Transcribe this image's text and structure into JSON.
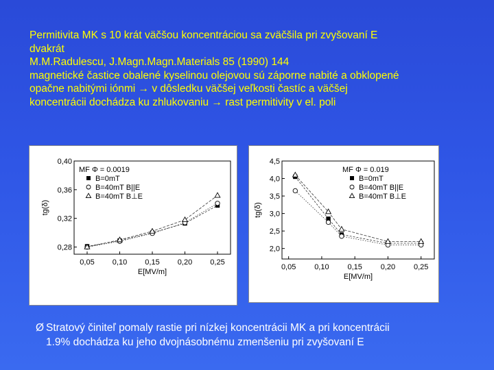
{
  "header": {
    "lines": [
      "Permitivita MK s 10 krát väčšou koncentráciou sa zväčšila pri zvyšovaní E",
      "dvakrát",
      "M.M.Radulescu, J.Magn.Magn.Materials 85 (1990) 144",
      "magnetické častice obalené kyselinou olejovou sú záporne nabité a obklopené",
      "opačne nabitými iónmi → v dôsledku väčšej veľkosti častíc a väčšej",
      "koncentrácii dochádza ku zhlukovaniu → rast permitivity v el. poli"
    ]
  },
  "footer": {
    "bullet": "Ø",
    "text_line1": "Stratový činiteľ pomaly rastie pri nízkej koncentrácii MK a pri koncentrácii",
    "text_line2": "1.9% dochádza ku jeho dvojnásobnému zmenšeniu pri zvyšovaní E"
  },
  "chart_data": [
    {
      "type": "line",
      "ylabel": "tg(δ)",
      "xlabel": "E[MV/m]",
      "xlim": [
        0.03,
        0.27
      ],
      "ylim": [
        0.27,
        0.4
      ],
      "x_ticks": [
        "0,05",
        "0,10",
        "0,15",
        "0,20",
        "0,25"
      ],
      "y_ticks": [
        "0,28",
        "0,32",
        "0,36",
        "0,40"
      ],
      "x_tick_values": [
        0.05,
        0.1,
        0.15,
        0.2,
        0.25
      ],
      "y_tick_values": [
        0.28,
        0.32,
        0.36,
        0.4
      ],
      "legend_position": "top-left",
      "legend_title": "MF Φ = 0.0019",
      "series": [
        {
          "name": "B=0mT",
          "marker": "square-filled",
          "x": [
            0.05,
            0.1,
            0.15,
            0.2,
            0.25
          ],
          "y": [
            0.281,
            0.289,
            0.3,
            0.313,
            0.338
          ]
        },
        {
          "name": "B=40mT B||E",
          "marker": "circle-open",
          "x": [
            0.05,
            0.1,
            0.15,
            0.2,
            0.25
          ],
          "y": [
            0.28,
            0.288,
            0.299,
            0.314,
            0.341
          ]
        },
        {
          "name": "B=40mT B⊥E",
          "marker": "triangle-open",
          "x": [
            0.05,
            0.1,
            0.15,
            0.2,
            0.25
          ],
          "y": [
            0.28,
            0.29,
            0.302,
            0.318,
            0.352
          ]
        }
      ]
    },
    {
      "type": "line",
      "ylabel": "tg(δ)",
      "xlabel": "E[MV/m]",
      "xlim": [
        0.04,
        0.27
      ],
      "ylim": [
        1.7,
        4.5
      ],
      "x_ticks": [
        "0,05",
        "0,10",
        "0,15",
        "0,20",
        "0,25"
      ],
      "y_ticks": [
        "2,0",
        "2,5",
        "3,0",
        "3,5",
        "4,0",
        "4,5"
      ],
      "x_tick_values": [
        0.05,
        0.1,
        0.15,
        0.2,
        0.25
      ],
      "y_tick_values": [
        2.0,
        2.5,
        3.0,
        3.5,
        4.0,
        4.5
      ],
      "legend_position": "top-right",
      "legend_title": "MF Φ = 0.019",
      "series": [
        {
          "name": "B=0mT",
          "marker": "square-filled",
          "x": [
            0.06,
            0.11,
            0.13,
            0.2,
            0.25
          ],
          "y": [
            4.05,
            2.85,
            2.4,
            2.15,
            2.15
          ]
        },
        {
          "name": "B=40mT B||E",
          "marker": "circle-open",
          "x": [
            0.06,
            0.11,
            0.13,
            0.2,
            0.25
          ],
          "y": [
            3.65,
            2.75,
            2.35,
            2.1,
            2.1
          ]
        },
        {
          "name": "B=40mT B⊥E",
          "marker": "triangle-open",
          "x": [
            0.06,
            0.11,
            0.13,
            0.2,
            0.25
          ],
          "y": [
            4.1,
            3.05,
            2.55,
            2.2,
            2.2
          ]
        }
      ]
    }
  ]
}
